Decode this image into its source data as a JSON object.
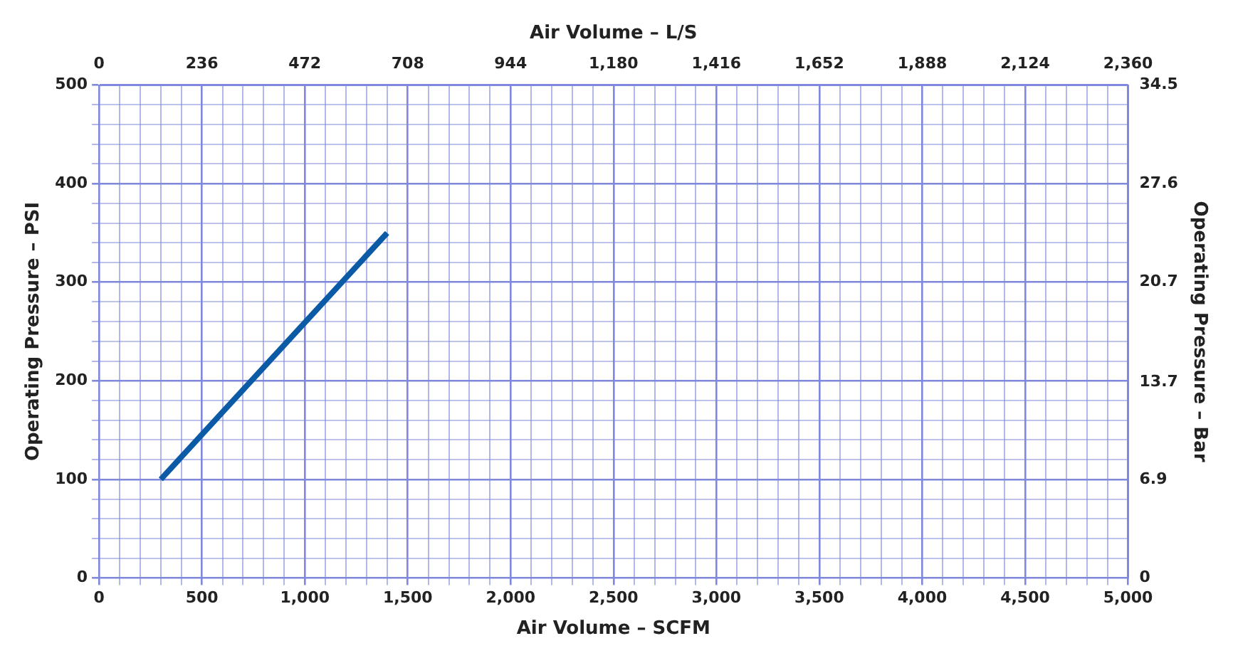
{
  "chart_data": {
    "type": "line",
    "xlabel": "Air Volume – SCFM",
    "ylabel": "Operating Pressure – PSI",
    "x2label": "Air Volume – L/S",
    "y2label": "Operating Pressure – Bar",
    "xlim": [
      0,
      5000
    ],
    "xticks": [
      0,
      {
        "value": 100,
        "label": null
      },
      {
        "value": 200,
        "label": null
      },
      {
        "value": 300,
        "label": null
      },
      {
        "value": 400,
        "label": null
      },
      500,
      {
        "value": 600,
        "label": null
      },
      {
        "value": 700,
        "label": null
      },
      {
        "value": 800,
        "label": null
      },
      {
        "value": 900,
        "label": null
      },
      {
        "value": 1000,
        "label": "1,000"
      },
      {
        "value": 1100,
        "label": null
      },
      {
        "value": 1200,
        "label": null
      },
      {
        "value": 1300,
        "label": null
      },
      {
        "value": 1400,
        "label": null
      },
      {
        "value": 1500,
        "label": "1,500"
      },
      {
        "value": 1600,
        "label": null
      },
      {
        "value": 1700,
        "label": null
      },
      {
        "value": 1800,
        "label": null
      },
      {
        "value": 1900,
        "label": null
      },
      {
        "value": 2000,
        "label": "2,000"
      },
      {
        "value": 2100,
        "label": null
      },
      {
        "value": 2200,
        "label": null
      },
      {
        "value": 2300,
        "label": null
      },
      {
        "value": 2400,
        "label": null
      },
      {
        "value": 2500,
        "label": "2,500"
      },
      {
        "value": 2600,
        "label": null
      },
      {
        "value": 2700,
        "label": null
      },
      {
        "value": 2800,
        "label": null
      },
      {
        "value": 2900,
        "label": null
      },
      {
        "value": 3000,
        "label": "3,000"
      },
      {
        "value": 3100,
        "label": null
      },
      {
        "value": 3200,
        "label": null
      },
      {
        "value": 3300,
        "label": null
      },
      {
        "value": 3400,
        "label": null
      },
      {
        "value": 3500,
        "label": "3,500"
      },
      {
        "value": 3600,
        "label": null
      },
      {
        "value": 3700,
        "label": null
      },
      {
        "value": 3800,
        "label": null
      },
      {
        "value": 3900,
        "label": null
      },
      {
        "value": 4000,
        "label": "4,000"
      },
      {
        "value": 4100,
        "label": null
      },
      {
        "value": 4200,
        "label": null
      },
      {
        "value": 4300,
        "label": null
      },
      {
        "value": 4400,
        "label": null
      },
      {
        "value": 4500,
        "label": "4,500"
      },
      {
        "value": 4600,
        "label": null
      },
      {
        "value": 4700,
        "label": null
      },
      {
        "value": 4800,
        "label": null
      },
      {
        "value": 4900,
        "label": null
      },
      {
        "value": 5000,
        "label": "5,000"
      }
    ],
    "x2lim": [
      0,
      2360
    ],
    "x2ticks": [
      0,
      236,
      472,
      708,
      944,
      {
        "value": 1180,
        "label": "1,180"
      },
      {
        "value": 1416,
        "label": "1,416"
      },
      {
        "value": 1652,
        "label": "1,652"
      },
      {
        "value": 1888,
        "label": "1,888"
      },
      {
        "value": 2124,
        "label": "2,124"
      },
      {
        "value": 2360,
        "label": "2,360"
      }
    ],
    "ylim": [
      0,
      500
    ],
    "yticks": [
      0,
      {
        "value": 20,
        "label": null
      },
      {
        "value": 40,
        "label": null
      },
      {
        "value": 60,
        "label": null
      },
      {
        "value": 80,
        "label": null
      },
      100,
      {
        "value": 120,
        "label": null
      },
      {
        "value": 140,
        "label": null
      },
      {
        "value": 160,
        "label": null
      },
      {
        "value": 180,
        "label": null
      },
      200,
      {
        "value": 220,
        "label": null
      },
      {
        "value": 240,
        "label": null
      },
      {
        "value": 260,
        "label": null
      },
      {
        "value": 280,
        "label": null
      },
      300,
      {
        "value": 320,
        "label": null
      },
      {
        "value": 340,
        "label": null
      },
      {
        "value": 360,
        "label": null
      },
      {
        "value": 380,
        "label": null
      },
      400,
      {
        "value": 420,
        "label": null
      },
      {
        "value": 440,
        "label": null
      },
      {
        "value": 460,
        "label": null
      },
      {
        "value": 480,
        "label": null
      },
      500
    ],
    "y2lim": [
      0,
      34.5
    ],
    "y2ticks": [
      0,
      6.9,
      13.7,
      20.7,
      27.6,
      34.5
    ],
    "grid": true,
    "marker": "none",
    "line_style": "solid",
    "legend": false,
    "series": [
      {
        "color": "#0b5aa6",
        "x": [
          300,
          1400
        ],
        "values": [
          100,
          350
        ]
      }
    ]
  }
}
